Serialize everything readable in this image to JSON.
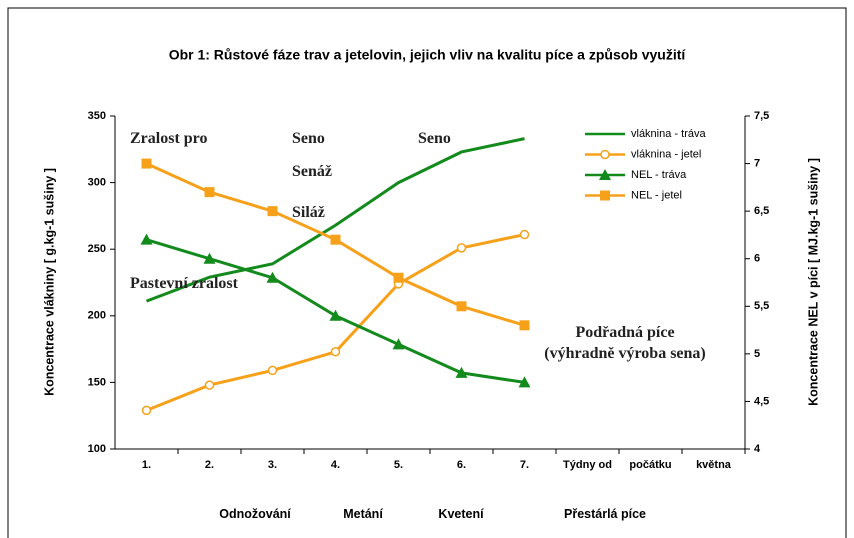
{
  "chart_data": {
    "type": "line",
    "title": "Obr 1: Růstové fáze trav a jetelovin, jejich vliv na kvalitu píce a způsob využití",
    "ylabel": "Koncentrace vlákniny [ g.kg-1 sušiny ]",
    "y2label": "Koncentrace NEL v píci [ MJ.kg-1 sušiny ]",
    "categories": [
      "1.",
      "2.",
      "3.",
      "4.",
      "5.",
      "6.",
      "7.",
      "Týdny od",
      "počátku",
      "května"
    ],
    "x_groups": [
      "Odnožování",
      "Metání",
      "Kvetení",
      "Přestárlá píce"
    ],
    "annotations": [
      "Zralost pro",
      "Seno",
      "Seno",
      "Senáž",
      "Siláž",
      "Pastevní zralost",
      "Podřadná píce (výhradně výroba sena)"
    ],
    "ylim": [
      100,
      350
    ],
    "yticks": [
      100,
      150,
      200,
      250,
      300,
      350
    ],
    "y2lim": [
      4,
      7.5
    ],
    "y2ticks": [
      4,
      {
        "value": 4.5,
        "label": "4,5"
      },
      5,
      {
        "value": 5.5,
        "label": "5,5"
      },
      6,
      {
        "value": 6.5,
        "label": "6,5"
      },
      7,
      {
        "value": 7.5,
        "label": "7,5"
      }
    ],
    "legend_position": "upper right",
    "series": [
      {
        "name": "vláknina - tráva",
        "color": "#138a1c",
        "marker": "none",
        "values": [
          211,
          229,
          239,
          268,
          300,
          323,
          333,
          null,
          null,
          null
        ]
      },
      {
        "name": "vláknina - jetel",
        "color": "#f7a11a",
        "marker": "open-circle",
        "values": [
          129,
          148,
          159,
          173,
          224,
          251,
          261,
          null,
          null,
          null
        ]
      },
      {
        "name": "NEL - tráva",
        "color": "#138a1c",
        "marker": "triangle",
        "axis": "y2",
        "values": [
          6.2,
          6.0,
          5.8,
          5.4,
          5.1,
          4.8,
          4.7,
          null,
          null,
          null
        ]
      },
      {
        "name": "NEL - jetel",
        "color": "#f7a11a",
        "marker": "square",
        "axis": "y2",
        "values": [
          7.0,
          6.7,
          6.5,
          6.2,
          5.8,
          5.5,
          5.3,
          null,
          null,
          null
        ]
      }
    ]
  }
}
